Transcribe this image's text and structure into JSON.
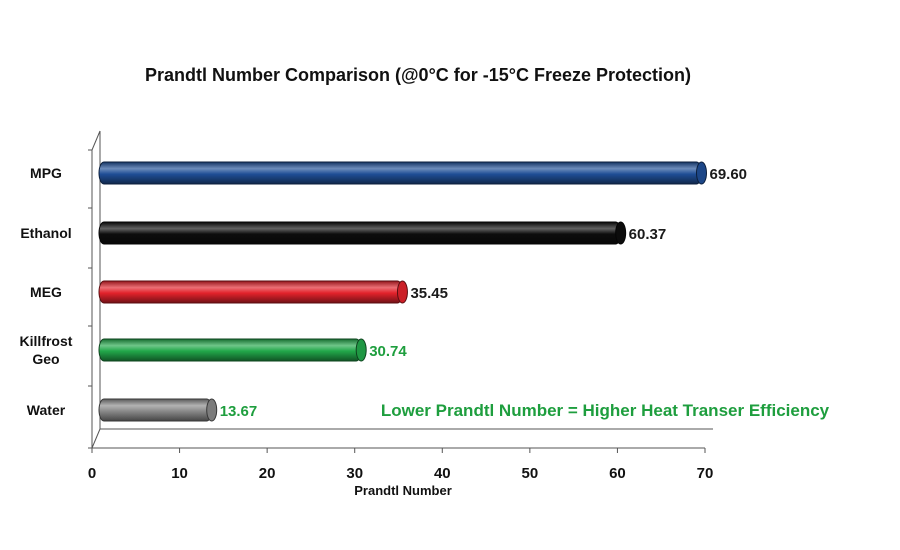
{
  "chart_data": {
    "type": "bar",
    "orientation": "horizontal",
    "title": "Prandtl Number Comparison (@0°C for -15°C Freeze Protection)",
    "xlabel": "Prandtl Number",
    "ylabel": "",
    "xlim": [
      0,
      70
    ],
    "xticks": [
      0,
      10,
      20,
      30,
      40,
      50,
      60,
      70
    ],
    "grid": false,
    "categories": [
      {
        "lines": [
          "MPG"
        ]
      },
      {
        "lines": [
          "Ethanol"
        ]
      },
      {
        "lines": [
          "MEG"
        ]
      },
      {
        "lines": [
          "Killfrost",
          "Geo"
        ]
      },
      {
        "lines": [
          "Water"
        ]
      }
    ],
    "values": [
      69.6,
      60.37,
      35.45,
      30.74,
      13.67
    ],
    "value_labels": [
      "69.60",
      "60.37",
      "35.45",
      "30.74",
      "13.67"
    ],
    "bar_colors": [
      "#1f4e96",
      "#0d0d0d",
      "#e2222b",
      "#22a84a",
      "#8a8a8a"
    ],
    "value_label_colors": [
      "#1a1a1a",
      "#1a1a1a",
      "#1a1a1a",
      "#1e9e3e",
      "#1e9e3e"
    ],
    "annotation": {
      "text": "Lower Prandtl Number = Higher Heat Transer Efficiency",
      "color": "#1e9e3e"
    }
  }
}
